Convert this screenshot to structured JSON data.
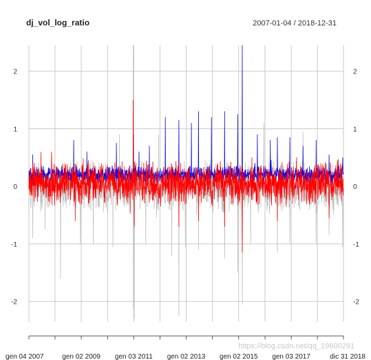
{
  "header": {
    "title": "dj_vol_log_ratio",
    "date_range": "2007-01-04 / 2018-12-31"
  },
  "watermark": "https://blog.csdn.net/qq_19600291",
  "chart_data": {
    "type": "line",
    "ylim": [
      -2.35,
      2.45
    ],
    "y_ticks": [
      {
        "value": 2,
        "label": "2"
      },
      {
        "value": 1,
        "label": "1"
      },
      {
        "value": 0,
        "label": "0"
      },
      {
        "value": -1,
        "label": "-1"
      },
      {
        "value": -2,
        "label": "-2"
      }
    ],
    "x_range": [
      "2007-01-04",
      "2018-12-31"
    ],
    "x_ticks": [
      {
        "date": "2007-01-04",
        "label": "gen 04 2007"
      },
      {
        "date": "2009-01-02",
        "label": "gen 02 2009"
      },
      {
        "date": "2011-01-03",
        "label": "gen 03 2011"
      },
      {
        "date": "2013-01-02",
        "label": "gen 02 2013"
      },
      {
        "date": "2015-01-02",
        "label": "gen 02 2015"
      },
      {
        "date": "2017-01-03",
        "label": "gen 03 2017"
      },
      {
        "date": "2018-12-31",
        "label": "dic 31 2018"
      }
    ],
    "minor_x_ticks": [
      "2008-01-02",
      "2010-01-04",
      "2012-01-03",
      "2014-01-02",
      "2016-01-04",
      "2018-01-02"
    ],
    "grid": true,
    "series": [
      {
        "color": "#bdbdbd",
        "baseline": 0.0,
        "noise_amplitude": 0.35,
        "spikes": [
          {
            "date": "2007-02-27",
            "value": -0.9
          },
          {
            "date": "2007-08-16",
            "value": -0.75
          },
          {
            "date": "2008-03-20",
            "value": -1.6
          },
          {
            "date": "2008-09-19",
            "value": 0.75
          },
          {
            "date": "2008-12-22",
            "value": -1.0
          },
          {
            "date": "2009-06-19",
            "value": -1.0
          },
          {
            "date": "2010-03-19",
            "value": -1.05
          },
          {
            "date": "2010-06-18",
            "value": 0.9
          },
          {
            "date": "2010-12-27",
            "value": 2.45
          },
          {
            "date": "2010-12-28",
            "value": -2.1
          },
          {
            "date": "2011-01-10",
            "value": 2.45
          },
          {
            "date": "2011-01-11",
            "value": -2.3
          },
          {
            "date": "2011-06-17",
            "value": -1.0
          },
          {
            "date": "2011-12-16",
            "value": 0.9
          },
          {
            "date": "2012-06-15",
            "value": -1.2
          },
          {
            "date": "2012-09-21",
            "value": -2.25
          },
          {
            "date": "2012-12-21",
            "value": -1.05
          },
          {
            "date": "2013-06-21",
            "value": -1.1
          },
          {
            "date": "2013-12-20",
            "value": 1.0
          },
          {
            "date": "2014-06-20",
            "value": -1.25
          },
          {
            "date": "2014-12-19",
            "value": -1.5
          },
          {
            "date": "2015-02-20",
            "value": -2.05
          },
          {
            "date": "2015-06-19",
            "value": -1.0
          },
          {
            "date": "2015-12-18",
            "value": 1.1
          },
          {
            "date": "2016-06-24",
            "value": -1.15
          },
          {
            "date": "2016-12-16",
            "value": -1.0
          },
          {
            "date": "2017-06-16",
            "value": 0.95
          },
          {
            "date": "2017-12-15",
            "value": -1.0
          },
          {
            "date": "2018-06-15",
            "value": -0.85
          },
          {
            "date": "2018-12-21",
            "value": -1.05
          }
        ]
      },
      {
        "color": "#0000ee",
        "baseline": 0.2,
        "noise_amplitude": 0.12,
        "spikes": [
          {
            "date": "2007-02-27",
            "value": 0.55
          },
          {
            "date": "2008-09-19",
            "value": 0.8
          },
          {
            "date": "2009-03-20",
            "value": 0.6
          },
          {
            "date": "2010-05-06",
            "value": 0.75
          },
          {
            "date": "2010-12-29",
            "value": 0.9
          },
          {
            "date": "2011-03-18",
            "value": 0.6
          },
          {
            "date": "2011-08-08",
            "value": 0.7
          },
          {
            "date": "2012-03-16",
            "value": 1.2
          },
          {
            "date": "2012-09-21",
            "value": 1.15
          },
          {
            "date": "2013-03-15",
            "value": 1.1
          },
          {
            "date": "2013-06-21",
            "value": 1.3
          },
          {
            "date": "2013-12-20",
            "value": 1.2
          },
          {
            "date": "2014-06-20",
            "value": 1.3
          },
          {
            "date": "2014-12-19",
            "value": 1.25
          },
          {
            "date": "2015-02-20",
            "value": 2.45
          },
          {
            "date": "2015-09-18",
            "value": 0.9
          },
          {
            "date": "2016-03-18",
            "value": 0.8
          },
          {
            "date": "2016-06-24",
            "value": 0.85
          },
          {
            "date": "2016-12-16",
            "value": 0.85
          },
          {
            "date": "2017-06-16",
            "value": 0.7
          },
          {
            "date": "2017-12-15",
            "value": 0.8
          },
          {
            "date": "2018-06-15",
            "value": 0.55
          },
          {
            "date": "2018-12-21",
            "value": 0.5
          }
        ]
      },
      {
        "color": "#ff0000",
        "baseline": 0.05,
        "noise_amplitude": 0.3,
        "spikes": [
          {
            "date": "2007-11-16",
            "value": 0.6
          },
          {
            "date": "2008-10-10",
            "value": -0.6
          },
          {
            "date": "2010-12-27",
            "value": 1.5
          },
          {
            "date": "2011-01-11",
            "value": -0.7
          },
          {
            "date": "2012-09-21",
            "value": -0.7
          },
          {
            "date": "2013-06-21",
            "value": -0.6
          },
          {
            "date": "2014-06-20",
            "value": -0.7
          },
          {
            "date": "2015-02-20",
            "value": -1.15
          },
          {
            "date": "2016-06-24",
            "value": -0.6
          },
          {
            "date": "2017-03-17",
            "value": 0.5
          },
          {
            "date": "2018-06-15",
            "value": -0.55
          }
        ]
      }
    ]
  }
}
